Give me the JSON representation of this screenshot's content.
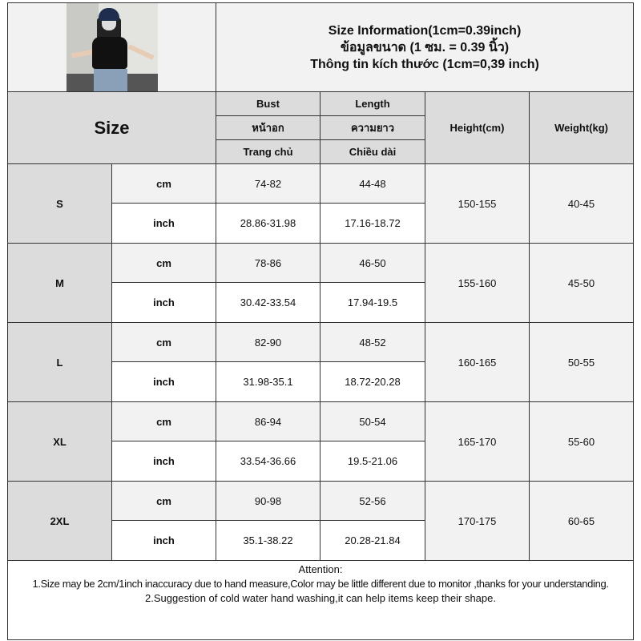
{
  "header": {
    "title_en": "Size Information(1cm=0.39inch)",
    "title_th": "ข้อมูลขนาด (1 ซม. = 0.39 นิ้ว)",
    "title_vi": "Thông tin kích thước (1cm=0,39 inch)",
    "photo": "product-photo-model-black-tshirt"
  },
  "columns": {
    "size": "Size",
    "bust": [
      "Bust",
      "หน้าอก",
      "Trang chủ"
    ],
    "length": [
      "Length",
      "ความยาว",
      "Chiều dài"
    ],
    "height": "Height(cm)",
    "weight": "Weight(kg)"
  },
  "units": {
    "cm": "cm",
    "inch": "inch"
  },
  "rows": [
    {
      "size": "S",
      "bust_cm": "74-82",
      "length_cm": "44-48",
      "bust_in": "28.86-31.98",
      "length_in": "17.16-18.72",
      "height": "150-155",
      "weight": "40-45"
    },
    {
      "size": "M",
      "bust_cm": "78-86",
      "length_cm": "46-50",
      "bust_in": "30.42-33.54",
      "length_in": "17.94-19.5",
      "height": "155-160",
      "weight": "45-50"
    },
    {
      "size": "L",
      "bust_cm": "82-90",
      "length_cm": "48-52",
      "bust_in": "31.98-35.1",
      "length_in": "18.72-20.28",
      "height": "160-165",
      "weight": "50-55"
    },
    {
      "size": "XL",
      "bust_cm": "86-94",
      "length_cm": "50-54",
      "bust_in": "33.54-36.66",
      "length_in": "19.5-21.06",
      "height": "165-170",
      "weight": "55-60"
    },
    {
      "size": "2XL",
      "bust_cm": "90-98",
      "length_cm": "52-56",
      "bust_in": "35.1-38.22",
      "length_in": "20.28-21.84",
      "height": "170-175",
      "weight": "60-65"
    }
  ],
  "attention": {
    "heading": "Attention:",
    "line1": "1.Size may be 2cm/1inch inaccuracy due to hand measure,Color may be little different due to monitor ,thanks for your understanding.",
    "line2": "2.Suggestion of cold water hand washing,it can help items keep their shape."
  }
}
